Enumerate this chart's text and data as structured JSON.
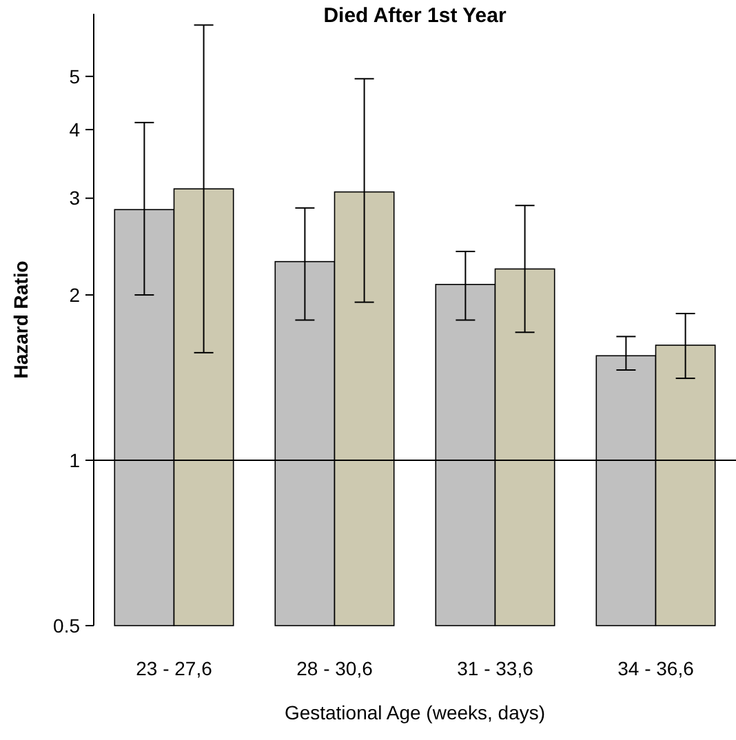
{
  "chart_data": {
    "type": "bar",
    "title": "Died After 1st Year",
    "xlabel": "Gestational Age (weeks, days)",
    "ylabel": "Hazard Ratio",
    "categories": [
      "23 - 27,6",
      "28 - 30,6",
      "31 - 33,6",
      "34 - 36,6"
    ],
    "log": "y",
    "ylim": [
      0.5,
      6.5
    ],
    "yticks": [
      0.5,
      1,
      2,
      3,
      4,
      5
    ],
    "series": [
      {
        "color": "#c0c0c0",
        "values": [
          2.86,
          2.3,
          2.09,
          1.55
        ],
        "errors": [
          [
            2.0,
            4.12
          ],
          [
            1.8,
            2.88
          ],
          [
            1.8,
            2.4
          ],
          [
            1.46,
            1.68
          ]
        ]
      },
      {
        "color": "#cdc9b0",
        "values": [
          3.12,
          3.08,
          2.23,
          1.62
        ],
        "errors": [
          [
            1.57,
            6.2
          ],
          [
            1.94,
            4.95
          ],
          [
            1.71,
            2.91
          ],
          [
            1.41,
            1.85
          ]
        ]
      }
    ],
    "ref_lines": [
      {
        "axis": "y",
        "value": 1,
        "color": "#000000"
      }
    ],
    "grid": false
  }
}
